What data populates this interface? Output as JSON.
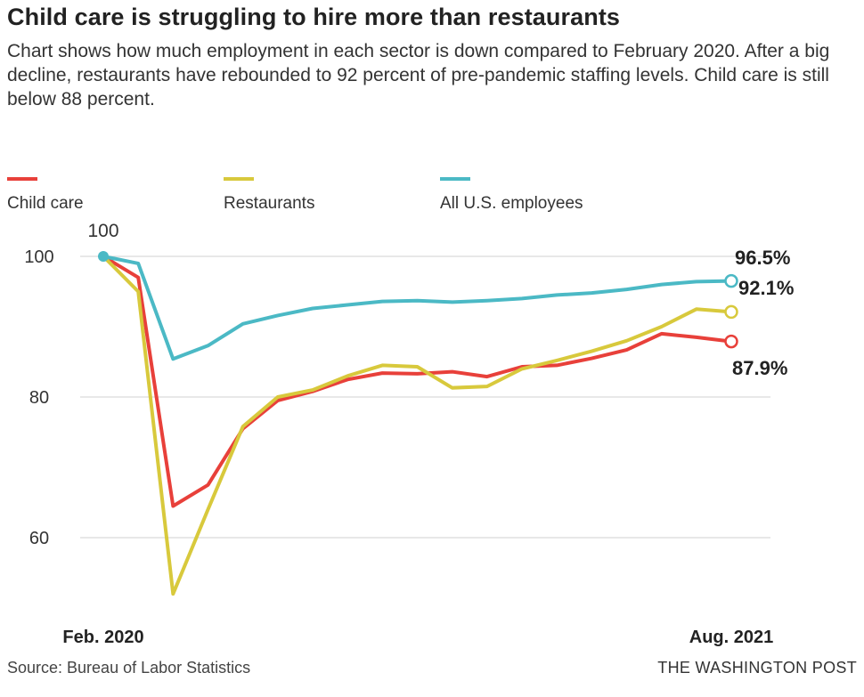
{
  "header": {
    "title": "Child care is struggling to hire more than restaurants",
    "subtitle": "Chart shows how much employment in each sector is down compared to February 2020. After a big decline, restaurants have rebounded to 92 percent of pre-pandemic staffing levels. Child care is still below 88 percent."
  },
  "footer": {
    "source": "Source: Bureau of Labor Statistics",
    "credit": "THE WASHINGTON POST"
  },
  "chart_data": {
    "type": "line",
    "title": "Child care is struggling to hire more than restaurants",
    "xlabel": "",
    "ylabel": "",
    "ylim": [
      47,
      102
    ],
    "yticks": [
      100,
      80,
      60
    ],
    "grid": true,
    "legend_position": "top-left",
    "x": [
      "2020-02",
      "2020-03",
      "2020-04",
      "2020-05",
      "2020-06",
      "2020-07",
      "2020-08",
      "2020-09",
      "2020-10",
      "2020-11",
      "2020-12",
      "2021-01",
      "2021-02",
      "2021-03",
      "2021-04",
      "2021-05",
      "2021-06",
      "2021-07",
      "2021-08"
    ],
    "x_tick_labels": [
      "Feb. 2020",
      "Aug. 2021"
    ],
    "series": [
      {
        "name": "Child care",
        "color": "#e8403a",
        "values": [
          100,
          97,
          64.5,
          67.5,
          75.5,
          79.5,
          80.8,
          82.5,
          83.4,
          83.3,
          83.6,
          82.9,
          84.3,
          84.5,
          85.5,
          86.7,
          89,
          88.5,
          87.9
        ]
      },
      {
        "name": "Restaurants",
        "color": "#d8c93c",
        "values": [
          100,
          95,
          52,
          64,
          75.8,
          80,
          81,
          83,
          84.5,
          84.3,
          81.3,
          81.5,
          84,
          85.2,
          86.5,
          88,
          90,
          92.5,
          92.1
        ]
      },
      {
        "name": "All U.S. employees",
        "color": "#4bb9c5",
        "values": [
          100,
          99,
          85.4,
          87.3,
          90.4,
          91.6,
          92.6,
          93.1,
          93.6,
          93.7,
          93.5,
          93.7,
          94,
          94.5,
          94.8,
          95.3,
          96,
          96.4,
          96.5
        ]
      }
    ],
    "annotations": [
      {
        "text": "100",
        "value": 100,
        "x": "2020-02"
      },
      {
        "text": "96.5%",
        "value": 96.5,
        "series": "All U.S. employees"
      },
      {
        "text": "92.1%",
        "value": 92.1,
        "series": "Restaurants"
      },
      {
        "text": "87.9%",
        "value": 87.9,
        "series": "Child care"
      }
    ]
  }
}
